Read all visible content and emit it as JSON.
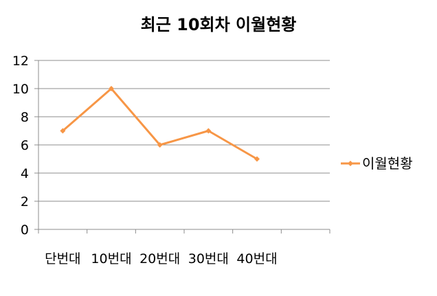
{
  "chart_data": {
    "type": "line",
    "title": "최근 10회차 이월현황",
    "categories": [
      "단번대",
      "10번대",
      "20번대",
      "30번대",
      "40번대"
    ],
    "series": [
      {
        "name": "이월현황",
        "values": [
          7,
          10,
          6,
          7,
          5
        ],
        "color": "#f79646"
      }
    ],
    "ylim": [
      0,
      12
    ],
    "yticks": [
      "0",
      "2",
      "4",
      "6",
      "8",
      "10",
      "12"
    ],
    "grid": true,
    "legend": "right"
  }
}
